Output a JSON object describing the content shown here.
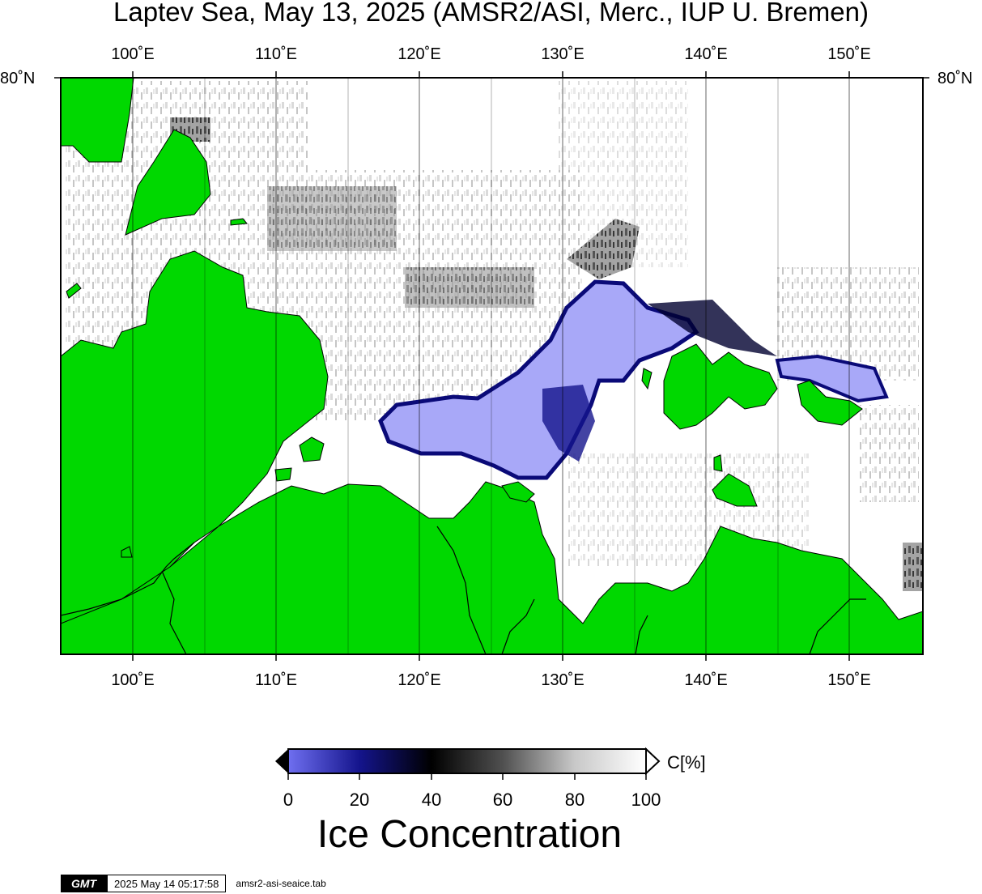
{
  "title": "Laptev Sea, May 13, 2025 (AMSR2/ASI, Merc., IUP U. Bremen)",
  "lon_labels": [
    "100˚E",
    "110˚E",
    "120˚E",
    "130˚E",
    "140˚E",
    "150˚E"
  ],
  "lat_label": "80˚N",
  "colorbar": {
    "ticks": [
      "0",
      "20",
      "40",
      "60",
      "80",
      "100"
    ],
    "unit": "C[%]",
    "title": "Ice Concentration",
    "stops": [
      {
        "value": 0,
        "color": "#6f6ff0"
      },
      {
        "value": 20,
        "color": "#14148c"
      },
      {
        "value": 40,
        "color": "#000000"
      },
      {
        "value": 60,
        "color": "#505050"
      },
      {
        "value": 80,
        "color": "#c8c8c8"
      },
      {
        "value": 100,
        "color": "#ffffff"
      }
    ]
  },
  "colors": {
    "land": "#00d800",
    "open_water_low_ice": "#a8a8f8",
    "ice_edge": "#0a0a78"
  },
  "footer": {
    "logo": "GMT",
    "timestamp": "2025 May 14 05:17:58",
    "file": "amsr2-asi-seaice.tab"
  }
}
